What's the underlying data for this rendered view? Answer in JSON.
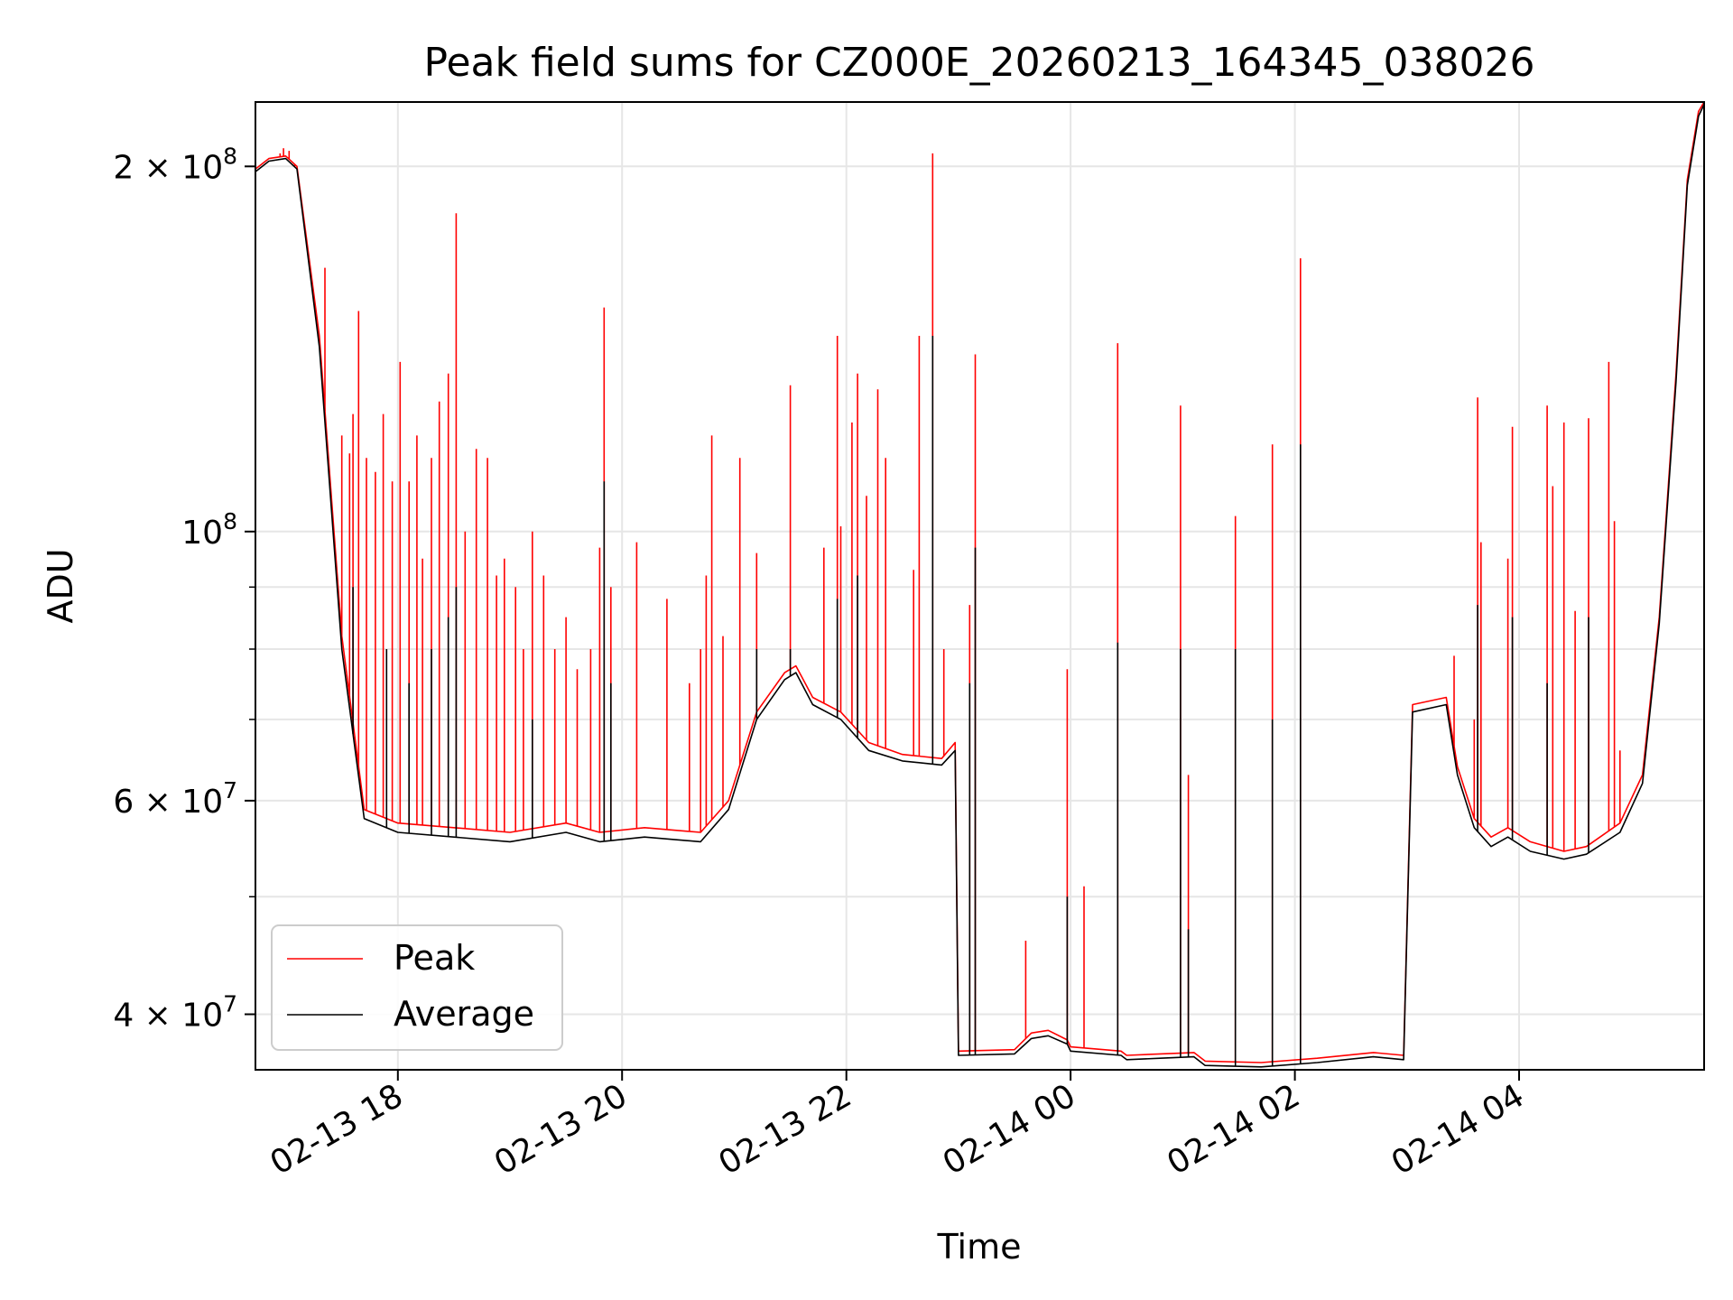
{
  "chart_data": {
    "type": "line",
    "title": "Peak field sums for CZ000E_20260213_164345_038026",
    "xlabel": "Time",
    "ylabel": "ADU",
    "yscale": "log",
    "xlim": [
      16.73,
      29.65
    ],
    "ylim": [
      36000000,
      226000000
    ],
    "grid": true,
    "legend_position": "lower-left",
    "x_ticks": [
      {
        "value": 18,
        "label": "02-13 18"
      },
      {
        "value": 20,
        "label": "02-13 20"
      },
      {
        "value": 22,
        "label": "02-13 22"
      },
      {
        "value": 24,
        "label": "02-14 00"
      },
      {
        "value": 26,
        "label": "02-14 02"
      },
      {
        "value": 28,
        "label": "02-14 04"
      }
    ],
    "y_major_ticks": [
      {
        "value": 40000000,
        "base": "4 × 10",
        "exp": "7"
      },
      {
        "value": 60000000,
        "base": "6 × 10",
        "exp": "7"
      },
      {
        "value": 100000000,
        "base": "10",
        "exp": "8"
      },
      {
        "value": 200000000,
        "base": "2 × 10",
        "exp": "8"
      }
    ],
    "y_minor_ticks": [
      50000000,
      70000000,
      80000000,
      90000000
    ],
    "series": [
      {
        "name": "Peak",
        "color": "#ff0000",
        "baseline": [
          [
            16.73,
            199000000
          ],
          [
            16.85,
            203000000
          ],
          [
            17.0,
            204000000
          ],
          [
            17.1,
            200000000
          ],
          [
            17.3,
            145000000
          ],
          [
            17.5,
            82000000
          ],
          [
            17.7,
            59000000
          ],
          [
            18.0,
            57500000
          ],
          [
            18.5,
            57000000
          ],
          [
            19.0,
            56500000
          ],
          [
            19.5,
            57500000
          ],
          [
            19.8,
            56500000
          ],
          [
            20.2,
            57000000
          ],
          [
            20.7,
            56500000
          ],
          [
            20.95,
            60000000
          ],
          [
            21.2,
            71000000
          ],
          [
            21.45,
            76500000
          ],
          [
            21.55,
            77500000
          ],
          [
            21.7,
            73000000
          ],
          [
            21.95,
            71000000
          ],
          [
            22.2,
            67000000
          ],
          [
            22.5,
            65500000
          ],
          [
            22.85,
            65000000
          ],
          [
            22.97,
            67000000
          ],
          [
            23.0,
            37300000
          ],
          [
            23.5,
            37400000
          ],
          [
            23.65,
            38600000
          ],
          [
            23.8,
            38800000
          ],
          [
            23.97,
            38100000
          ],
          [
            24.0,
            37600000
          ],
          [
            24.45,
            37300000
          ],
          [
            24.5,
            37000000
          ],
          [
            24.8,
            37100000
          ],
          [
            25.1,
            37200000
          ],
          [
            25.2,
            36600000
          ],
          [
            25.7,
            36500000
          ],
          [
            26.2,
            36800000
          ],
          [
            26.7,
            37200000
          ],
          [
            26.97,
            37000000
          ],
          [
            27.05,
            72000000
          ],
          [
            27.35,
            73000000
          ],
          [
            27.45,
            64000000
          ],
          [
            27.6,
            58000000
          ],
          [
            27.75,
            56000000
          ],
          [
            27.9,
            57000000
          ],
          [
            28.1,
            55500000
          ],
          [
            28.4,
            54500000
          ],
          [
            28.6,
            55000000
          ],
          [
            28.9,
            57500000
          ],
          [
            29.1,
            63000000
          ],
          [
            29.25,
            85000000
          ],
          [
            29.4,
            135000000
          ],
          [
            29.5,
            195000000
          ],
          [
            29.6,
            222000000
          ],
          [
            29.65,
            226000000
          ]
        ],
        "spikes": [
          [
            16.95,
            205000000
          ],
          [
            16.98,
            207000000
          ],
          [
            17.03,
            206000000
          ],
          [
            17.08,
            200000000
          ],
          [
            17.35,
            165000000
          ],
          [
            17.5,
            120000000
          ],
          [
            17.57,
            116000000
          ],
          [
            17.6,
            125000000
          ],
          [
            17.65,
            152000000
          ],
          [
            17.72,
            115000000
          ],
          [
            17.8,
            112000000
          ],
          [
            17.87,
            125000000
          ],
          [
            17.95,
            110000000
          ],
          [
            18.02,
            138000000
          ],
          [
            18.1,
            110000000
          ],
          [
            18.17,
            120000000
          ],
          [
            18.22,
            95000000
          ],
          [
            18.3,
            115000000
          ],
          [
            18.37,
            128000000
          ],
          [
            18.45,
            135000000
          ],
          [
            18.52,
            183000000
          ],
          [
            18.6,
            100000000
          ],
          [
            18.7,
            117000000
          ],
          [
            18.8,
            115000000
          ],
          [
            18.88,
            92000000
          ],
          [
            18.95,
            95000000
          ],
          [
            19.05,
            90000000
          ],
          [
            19.12,
            80000000
          ],
          [
            19.2,
            100000000
          ],
          [
            19.3,
            92000000
          ],
          [
            19.4,
            80000000
          ],
          [
            19.5,
            85000000
          ],
          [
            19.6,
            77000000
          ],
          [
            19.72,
            80000000
          ],
          [
            19.8,
            97000000
          ],
          [
            19.84,
            153000000
          ],
          [
            19.9,
            90000000
          ],
          [
            20.13,
            98000000
          ],
          [
            20.4,
            88000000
          ],
          [
            20.6,
            75000000
          ],
          [
            20.7,
            80000000
          ],
          [
            20.75,
            92000000
          ],
          [
            20.8,
            120000000
          ],
          [
            20.9,
            82000000
          ],
          [
            21.05,
            115000000
          ],
          [
            21.2,
            96000000
          ],
          [
            21.5,
            132000000
          ],
          [
            21.8,
            97000000
          ],
          [
            21.92,
            145000000
          ],
          [
            21.95,
            101000000
          ],
          [
            22.05,
            123000000
          ],
          [
            22.1,
            135000000
          ],
          [
            22.18,
            107000000
          ],
          [
            22.28,
            131000000
          ],
          [
            22.35,
            115000000
          ],
          [
            22.6,
            93000000
          ],
          [
            22.65,
            145000000
          ],
          [
            22.77,
            205000000
          ],
          [
            22.87,
            80000000
          ],
          [
            23.1,
            87000000
          ],
          [
            23.15,
            140000000
          ],
          [
            23.6,
            46000000
          ],
          [
            23.97,
            77000000
          ],
          [
            24.12,
            51000000
          ],
          [
            24.42,
            143000000
          ],
          [
            24.98,
            127000000
          ],
          [
            25.05,
            63000000
          ],
          [
            25.47,
            103000000
          ],
          [
            25.8,
            118000000
          ],
          [
            26.05,
            168000000
          ],
          [
            27.42,
            79000000
          ],
          [
            27.6,
            70000000
          ],
          [
            27.63,
            129000000
          ],
          [
            27.66,
            98000000
          ],
          [
            27.9,
            95000000
          ],
          [
            27.94,
            122000000
          ],
          [
            28.25,
            127000000
          ],
          [
            28.3,
            109000000
          ],
          [
            28.4,
            123000000
          ],
          [
            28.5,
            86000000
          ],
          [
            28.62,
            124000000
          ],
          [
            28.8,
            138000000
          ],
          [
            28.85,
            102000000
          ],
          [
            28.9,
            66000000
          ]
        ]
      },
      {
        "name": "Average",
        "color": "#000000",
        "baseline": [
          [
            16.73,
            198000000
          ],
          [
            16.85,
            202000000
          ],
          [
            17.0,
            203000000
          ],
          [
            17.1,
            199000000
          ],
          [
            17.3,
            142000000
          ],
          [
            17.5,
            80000000
          ],
          [
            17.7,
            58000000
          ],
          [
            18.0,
            56500000
          ],
          [
            18.5,
            56000000
          ],
          [
            19.0,
            55500000
          ],
          [
            19.5,
            56500000
          ],
          [
            19.8,
            55500000
          ],
          [
            20.2,
            56000000
          ],
          [
            20.7,
            55500000
          ],
          [
            20.95,
            59000000
          ],
          [
            21.2,
            70000000
          ],
          [
            21.45,
            75500000
          ],
          [
            21.55,
            76500000
          ],
          [
            21.7,
            72000000
          ],
          [
            21.95,
            70000000
          ],
          [
            22.2,
            66000000
          ],
          [
            22.5,
            64700000
          ],
          [
            22.85,
            64200000
          ],
          [
            22.97,
            66000000
          ],
          [
            23.0,
            37000000
          ],
          [
            23.5,
            37100000
          ],
          [
            23.65,
            38200000
          ],
          [
            23.8,
            38400000
          ],
          [
            23.97,
            37800000
          ],
          [
            24.0,
            37300000
          ],
          [
            24.45,
            37000000
          ],
          [
            24.5,
            36700000
          ],
          [
            24.8,
            36800000
          ],
          [
            25.1,
            36900000
          ],
          [
            25.2,
            36300000
          ],
          [
            25.7,
            36200000
          ],
          [
            26.2,
            36500000
          ],
          [
            26.7,
            36900000
          ],
          [
            26.97,
            36700000
          ],
          [
            27.05,
            71000000
          ],
          [
            27.35,
            72000000
          ],
          [
            27.45,
            63000000
          ],
          [
            27.6,
            57000000
          ],
          [
            27.75,
            55000000
          ],
          [
            27.9,
            56000000
          ],
          [
            28.1,
            54500000
          ],
          [
            28.4,
            53700000
          ],
          [
            28.6,
            54200000
          ],
          [
            28.9,
            56500000
          ],
          [
            29.1,
            62000000
          ],
          [
            29.25,
            84000000
          ],
          [
            29.4,
            133000000
          ],
          [
            29.5,
            193000000
          ],
          [
            29.6,
            220000000
          ],
          [
            29.65,
            225000000
          ]
        ],
        "spikes": [
          [
            17.6,
            90000000
          ],
          [
            17.9,
            80000000
          ],
          [
            18.1,
            75000000
          ],
          [
            18.3,
            80000000
          ],
          [
            18.45,
            85000000
          ],
          [
            18.52,
            90000000
          ],
          [
            19.2,
            70000000
          ],
          [
            19.84,
            110000000
          ],
          [
            19.9,
            75000000
          ],
          [
            21.2,
            80000000
          ],
          [
            21.5,
            80000000
          ],
          [
            21.92,
            88000000
          ],
          [
            22.1,
            92000000
          ],
          [
            22.77,
            145000000
          ],
          [
            23.1,
            75000000
          ],
          [
            23.15,
            97000000
          ],
          [
            23.97,
            50000000
          ],
          [
            24.42,
            81000000
          ],
          [
            24.98,
            80000000
          ],
          [
            25.05,
            47000000
          ],
          [
            25.47,
            80000000
          ],
          [
            25.8,
            70000000
          ],
          [
            26.05,
            118000000
          ],
          [
            27.63,
            87000000
          ],
          [
            27.94,
            85000000
          ],
          [
            28.25,
            75000000
          ],
          [
            28.62,
            85000000
          ]
        ]
      }
    ]
  }
}
